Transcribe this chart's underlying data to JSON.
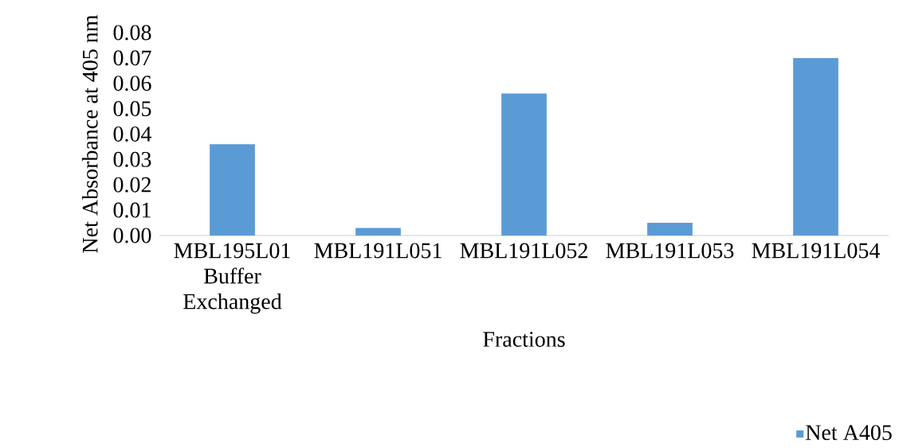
{
  "chart_data": {
    "type": "bar",
    "xlabel": "Fractions",
    "ylabel": "Net Absorbance at 405 nm",
    "categories": [
      "MBL195L01 Buffer Exchanged",
      "MBL191L051",
      "MBL191L052",
      "MBL191L053",
      "MBL191L054"
    ],
    "series": [
      {
        "name": "Net A405",
        "color": "#5b9bd5",
        "values": [
          0.036,
          0.003,
          0.056,
          0.005,
          0.07
        ]
      }
    ],
    "ylim": [
      0,
      0.08
    ],
    "yticks": [
      {
        "value": 0,
        "label": "0.00"
      },
      0.01,
      0.02,
      0.03,
      0.04,
      0.05,
      0.06,
      0.07,
      0.08
    ],
    "legend": "bottom right"
  }
}
